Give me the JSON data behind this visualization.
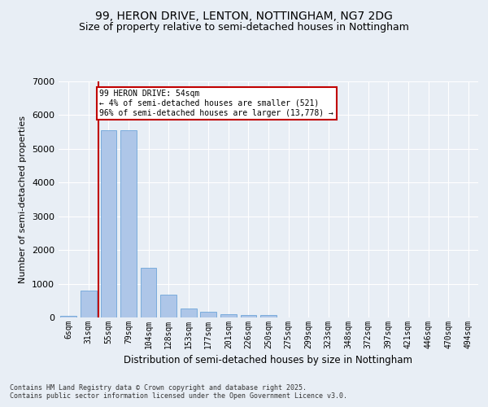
{
  "title1": "99, HERON DRIVE, LENTON, NOTTINGHAM, NG7 2DG",
  "title2": "Size of property relative to semi-detached houses in Nottingham",
  "xlabel": "Distribution of semi-detached houses by size in Nottingham",
  "ylabel": "Number of semi-detached properties",
  "categories": [
    "6sqm",
    "31sqm",
    "55sqm",
    "79sqm",
    "104sqm",
    "128sqm",
    "153sqm",
    "177sqm",
    "201sqm",
    "226sqm",
    "250sqm",
    "275sqm",
    "299sqm",
    "323sqm",
    "348sqm",
    "372sqm",
    "397sqm",
    "421sqm",
    "446sqm",
    "470sqm",
    "494sqm"
  ],
  "values": [
    50,
    800,
    5550,
    5550,
    1480,
    680,
    270,
    160,
    100,
    80,
    80,
    0,
    0,
    0,
    0,
    0,
    0,
    0,
    0,
    0,
    0
  ],
  "bar_color": "#aec6e8",
  "bar_edge_color": "#5b9bd5",
  "highlight_index": 2,
  "highlight_color": "#c00000",
  "annotation_text": "99 HERON DRIVE: 54sqm\n← 4% of semi-detached houses are smaller (521)\n96% of semi-detached houses are larger (13,778) →",
  "annotation_box_color": "#ffffff",
  "annotation_box_edge_color": "#c00000",
  "footer1": "Contains HM Land Registry data © Crown copyright and database right 2025.",
  "footer2": "Contains public sector information licensed under the Open Government Licence v3.0.",
  "ylim": [
    0,
    7000
  ],
  "background_color": "#e8eef5",
  "plot_background": "#e8eef5",
  "grid_color": "#ffffff",
  "title_fontsize": 10,
  "subtitle_fontsize": 9,
  "tick_fontsize": 7,
  "ylabel_fontsize": 8,
  "xlabel_fontsize": 8.5,
  "footer_fontsize": 6
}
